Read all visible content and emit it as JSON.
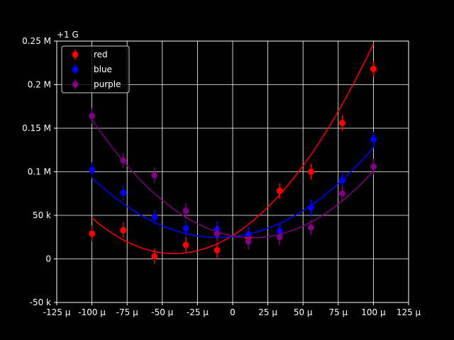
{
  "chart_data": {
    "type": "scatter",
    "offset_label": "+1 G",
    "xlim": [
      -0.000125,
      0.000125
    ],
    "ylim": [
      -50000,
      250000
    ],
    "grid": true,
    "legend_position": "top-left",
    "background": "#000000",
    "x_ticks": [
      {
        "value": -0.000125,
        "label": "-125 μ"
      },
      {
        "value": -0.0001,
        "label": "-100 μ"
      },
      {
        "value": -7.5e-05,
        "label": "-75 μ"
      },
      {
        "value": -5e-05,
        "label": "-50 μ"
      },
      {
        "value": -2.5e-05,
        "label": "-25 μ"
      },
      {
        "value": 0,
        "label": "0"
      },
      {
        "value": 2.5e-05,
        "label": "25 μ"
      },
      {
        "value": 5e-05,
        "label": "50 μ"
      },
      {
        "value": 7.5e-05,
        "label": "75 μ"
      },
      {
        "value": 0.0001,
        "label": "100 μ"
      },
      {
        "value": 0.000125,
        "label": "125 μ"
      }
    ],
    "y_ticks": [
      {
        "value": -50000,
        "label": "-50 k"
      },
      {
        "value": 0,
        "label": "0"
      },
      {
        "value": 50000,
        "label": "50 k"
      },
      {
        "value": 100000,
        "label": "0.1 M"
      },
      {
        "value": 150000,
        "label": "0.15 M"
      },
      {
        "value": 200000,
        "label": "0.2 M"
      },
      {
        "value": 250000,
        "label": "0.25 M"
      }
    ],
    "x": [
      -0.0001,
      -7.78e-05,
      -5.56e-05,
      -3.33e-05,
      -1.11e-05,
      1.11e-05,
      3.33e-05,
      5.56e-05,
      7.78e-05,
      0.0001
    ],
    "series": [
      {
        "name": "red",
        "color": "#ff0000",
        "values": [
          29000,
          33000,
          3000,
          16000,
          10000,
          25000,
          78000,
          100000,
          156000,
          218000
        ],
        "error": [
          9000,
          9000,
          9000,
          9000,
          9000,
          9000,
          9000,
          9000,
          9000,
          9000
        ],
        "fit": {
          "a": 12000000000000,
          "b": 1000000000,
          "c": 27000
        }
      },
      {
        "name": "blue",
        "color": "#0000ff",
        "values": [
          102000,
          76000,
          48000,
          35000,
          34000,
          28000,
          32000,
          59000,
          90000,
          137000
        ],
        "error": [
          9000,
          9000,
          9000,
          9000,
          9000,
          9000,
          9000,
          9000,
          9000,
          9000
        ],
        "fit": {
          "a": 8500000000000,
          "b": 175000000,
          "c": 25500
        }
      },
      {
        "name": "purple",
        "color": "#800080",
        "values": [
          164000,
          113000,
          96000,
          55000,
          29000,
          20000,
          25000,
          36000,
          75000,
          106000
        ],
        "error": [
          9000,
          9000,
          9000,
          9000,
          9000,
          9000,
          9000,
          9000,
          9000,
          9000
        ],
        "fit": {
          "a": 10400000000000,
          "b": -295000000,
          "c": 26500
        }
      }
    ]
  }
}
